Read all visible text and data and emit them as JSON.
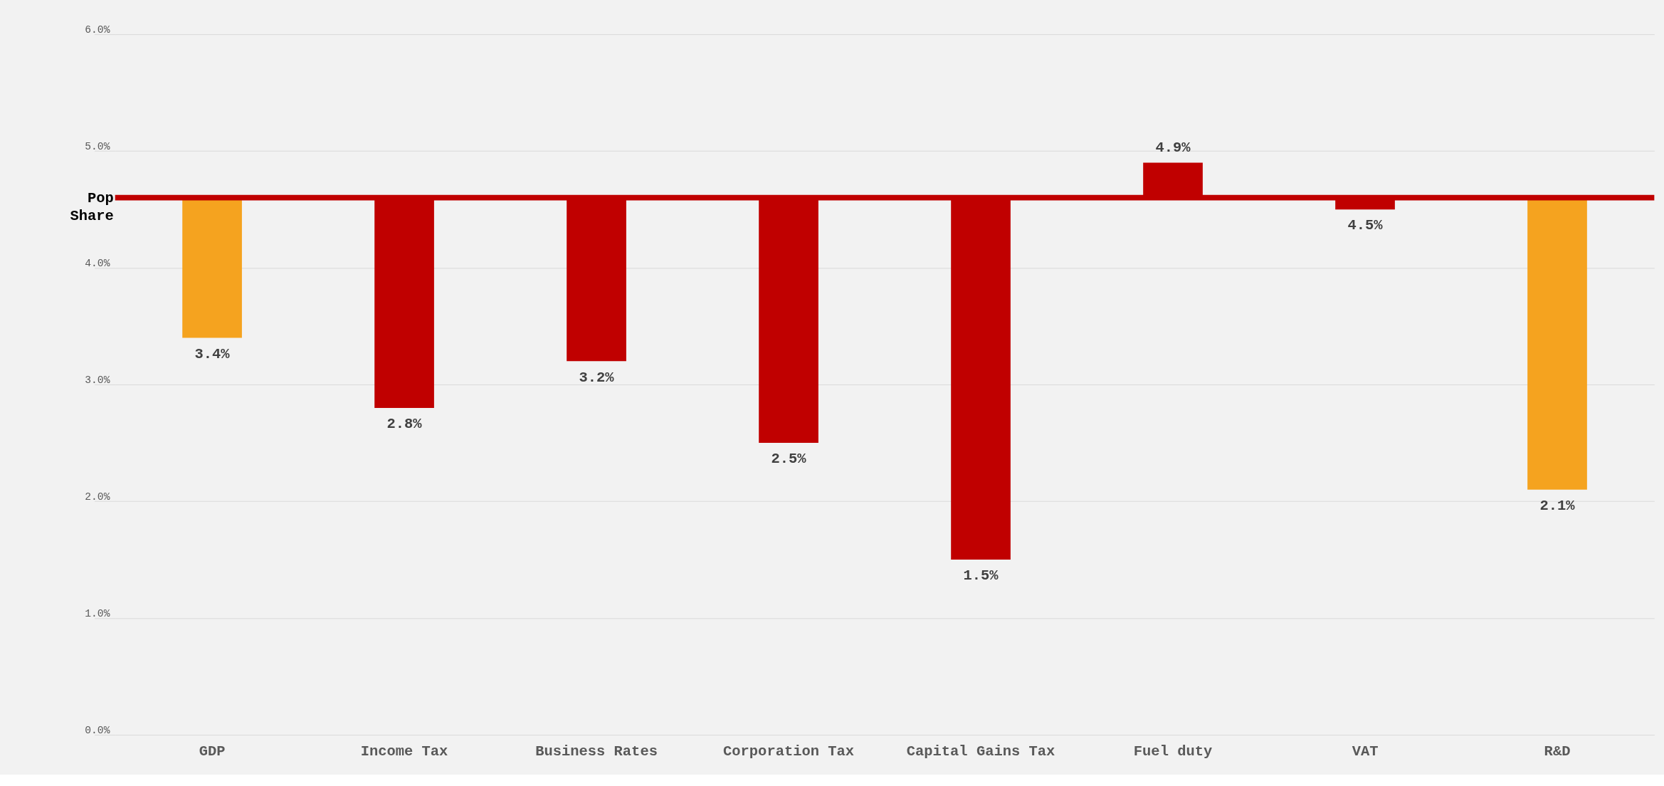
{
  "chart_data": {
    "type": "bar",
    "categories": [
      "GDP",
      "Income Tax",
      "Business Rates",
      "Corporation Tax",
      "Capital Gains Tax",
      "Fuel duty",
      "VAT",
      "R&D"
    ],
    "base": [
      4.6,
      4.6,
      4.6,
      4.6,
      4.6,
      4.6,
      4.6,
      4.6
    ],
    "values": [
      -1.2,
      -1.8,
      -1.4,
      -2.1,
      -3.1,
      0.3,
      -0.1,
      -2.5
    ],
    "colors": [
      "#f5a31f",
      "#c00000",
      "#c00000",
      "#c00000",
      "#c00000",
      "#c00000",
      "#c00000",
      "#f5a31f"
    ],
    "value_labels": [
      "3.4%",
      "2.8%",
      "3.2%",
      "2.5%",
      "1.5%",
      "4.9%",
      "4.5%",
      "2.1%"
    ],
    "ylim": [
      0,
      6
    ],
    "yticks": [
      {
        "value": 0,
        "label": "0.0%"
      },
      {
        "value": 1,
        "label": "1.0%"
      },
      {
        "value": 2,
        "label": "2.0%"
      },
      {
        "value": 3,
        "label": "3.0%"
      },
      {
        "value": 4,
        "label": "4.0%"
      },
      {
        "value": 5,
        "label": "5.0%"
      },
      {
        "value": 6,
        "label": "6.0%"
      }
    ],
    "ref_lines": [
      {
        "axis": "y",
        "value": 4.6,
        "label": "Pop Share",
        "color": "#c00000"
      }
    ],
    "grid": "y"
  }
}
